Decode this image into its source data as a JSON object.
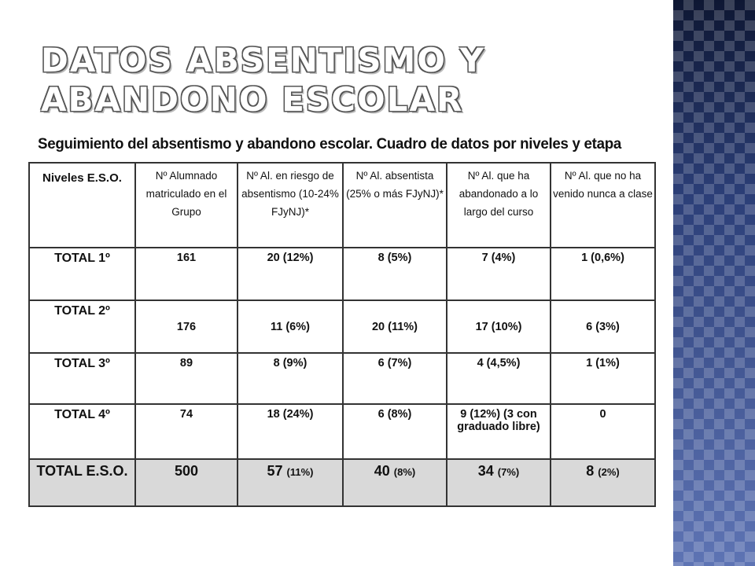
{
  "slide": {
    "title": "DATOS ABSENTISMO Y ABANDONO ESCOLAR"
  },
  "table": {
    "caption": "Seguimiento del absentismo y abandono escolar. Cuadro de datos por niveles y etapa",
    "headers": [
      "Niveles E.S.O.",
      "Nº Alumnado matriculado en el Grupo",
      "Nº Al. en riesgo de absentismo (10-24% FJyNJ)*",
      "Nº Al. absentista (25% o más FJyNJ)*",
      "Nº Al. que ha abandonado a lo largo del curso",
      "Nº Al. que no ha venido nunca a clase"
    ],
    "rows": [
      [
        "TOTAL 1º",
        "161",
        "20 (12%)",
        "8 (5%)",
        "7 (4%)",
        "1 (0,6%)"
      ],
      [
        "TOTAL 2º",
        "176",
        "11 (6%)",
        "20 (11%)",
        "17 (10%)",
        "6 (3%)"
      ],
      [
        "TOTAL 3º",
        "89",
        "8 (9%)",
        "6 (7%)",
        "4 (4,5%)",
        "1 (1%)"
      ],
      [
        "TOTAL 4º",
        "74",
        "18 (24%)",
        "6 (8%)",
        "9 (12%) (3 con graduado libre)",
        "0"
      ]
    ],
    "total": {
      "label": "TOTAL E.S.O.",
      "cells": [
        {
          "value": "500",
          "pct": ""
        },
        {
          "value": "57",
          "pct": "(11%)"
        },
        {
          "value": "40",
          "pct": "(8%)"
        },
        {
          "value": "34",
          "pct": "(7%)"
        },
        {
          "value": "8",
          "pct": "(2%)"
        }
      ]
    }
  },
  "colors": {
    "panel": "#3a4f8a",
    "total_row_bg": "#d9d9d9",
    "border": "#333333"
  }
}
